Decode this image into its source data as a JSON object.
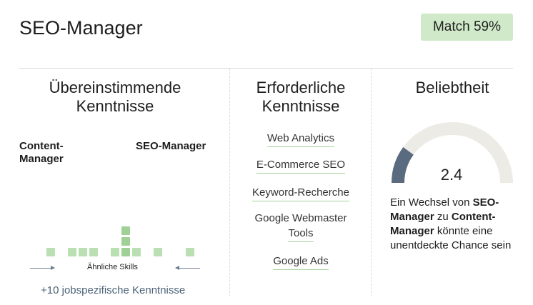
{
  "header": {
    "title": "SEO-Manager",
    "match_label": "Match 59%",
    "match_percent": 59
  },
  "overlap": {
    "heading_line1": "Übereinstimmende",
    "heading_line2": "Kenntnisse",
    "left_role_line1": "Content-",
    "left_role_line2": "Manager",
    "right_role": "SEO-Manager",
    "similar_skills_label": "Ähnliche Skills",
    "more_label": "+10 jobspezifische Kenntnisse"
  },
  "required": {
    "heading_line1": "Erforderliche",
    "heading_line2": "Kenntnisse",
    "skills": [
      "Web Analytics",
      "E-Commerce SEO",
      "Keyword-Recherche",
      "Google Webmaster",
      "Tools",
      "Google Ads"
    ]
  },
  "popularity": {
    "heading": "Beliebtheit",
    "value": "2.4",
    "gauge_fraction": 0.2,
    "text_pre": "Ein Wechsel von ",
    "text_from": "SEO-Manager",
    "text_mid": " zu ",
    "text_to": "Content-Manager",
    "text_post": " könnte eine unentdeckte Chance sein",
    "colors": {
      "gauge_fill": "#5a6b80",
      "gauge_track": "#ecebe6"
    }
  },
  "colors": {
    "badge_bg": "#cfe9c9",
    "skill_square": "#b9dfb2",
    "link": "#4c6378"
  }
}
